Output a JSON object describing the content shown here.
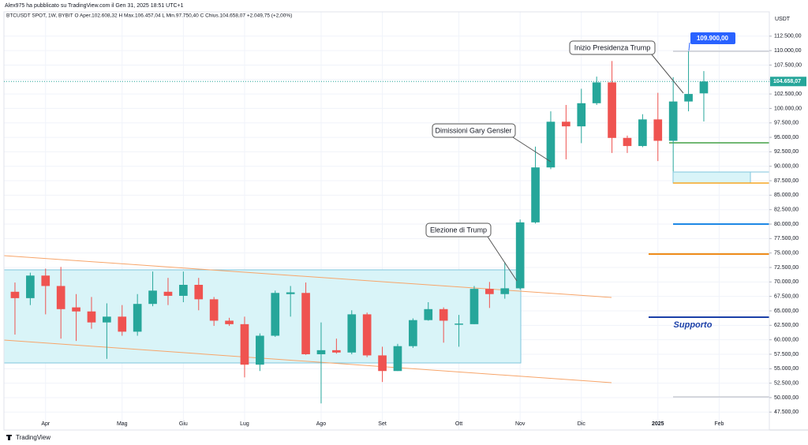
{
  "chart_data": {
    "type": "candlestick",
    "author_line": "Alex975 ha pubblicato su TradingView.com il Gen 31, 2025 18:51 UTC+1",
    "title": "BTCUSDT SPOT, 1W, BYBIT  O Aper.102.608,32  H Max.106.457,04  L Min.97.750,40  C Chius.104.658,07 +2.049,75 (+2,00%)",
    "currency": "USDT",
    "last_price": 104658.07,
    "last_price_label": "104.658,07",
    "up_color": "#26a69a",
    "down_color": "#ef5350",
    "annotations": [
      "Inizio Presidenza Trump",
      "Dimissioni Gary Gensler",
      "Elezione di Trump",
      "109.900,00",
      "Supporto"
    ],
    "brand": "TradingView",
    "open": [
      68300,
      67200,
      71100,
      69300,
      65600,
      64900,
      63000,
      64000,
      61400,
      66200,
      68300,
      67600,
      69500,
      67000,
      63300,
      62700,
      55700,
      60700,
      67900,
      68100,
      57500,
      58200,
      57800,
      64400,
      57300,
      54600,
      58900,
      63400,
      65300,
      62600,
      62700,
      68800,
      67900,
      68900,
      80300,
      89800,
      97700,
      96900,
      100900,
      104500,
      94900,
      93500,
      98100,
      94400,
      101200,
      102608
    ],
    "high": [
      69900,
      71600,
      72300,
      72600,
      67900,
      67400,
      66300,
      66000,
      67900,
      71800,
      70700,
      71800,
      70700,
      67400,
      63800,
      64000,
      61100,
      68500,
      69300,
      69900,
      63000,
      60200,
      65100,
      64700,
      58800,
      59300,
      63700,
      66500,
      65600,
      64300,
      69300,
      70000,
      73400,
      80800,
      93400,
      99500,
      100600,
      103400,
      105500,
      108200,
      95300,
      99000,
      102700,
      105400,
      109900,
      106457
    ],
    "low": [
      60900,
      66000,
      64400,
      60200,
      59800,
      61900,
      56700,
      60700,
      60700,
      65800,
      66000,
      66500,
      65100,
      62400,
      62400,
      53500,
      54600,
      60500,
      64000,
      57400,
      49000,
      57600,
      57500,
      57000,
      52700,
      54600,
      58600,
      63300,
      59500,
      58800,
      62700,
      65500,
      67100,
      68700,
      80100,
      89500,
      91200,
      94000,
      100600,
      92300,
      92300,
      93300,
      90900,
      89100,
      99500,
      97750
    ],
    "close": [
      67200,
      71100,
      69300,
      65300,
      64900,
      63000,
      64000,
      61400,
      66200,
      68500,
      67600,
      69500,
      67000,
      63300,
      62700,
      55700,
      60700,
      68100,
      68200,
      57500,
      58200,
      57800,
      64400,
      57300,
      54600,
      58900,
      63400,
      65300,
      63300,
      62800,
      68800,
      67900,
      68900,
      80300,
      89800,
      97700,
      96900,
      100900,
      104500,
      94900,
      93500,
      98100,
      94400,
      101200,
      102500,
      104658
    ],
    "xlim": [
      -0.72,
      49.28
    ],
    "xticks": [
      {
        "value": 2,
        "label": "Apr"
      },
      {
        "value": 7,
        "label": "Mag"
      },
      {
        "value": 11,
        "label": "Giu"
      },
      {
        "value": 15,
        "label": "Lug"
      },
      {
        "value": 20,
        "label": "Ago"
      },
      {
        "value": 24,
        "label": "Set"
      },
      {
        "value": 29,
        "label": "Ott"
      },
      {
        "value": 33,
        "label": "Nov"
      },
      {
        "value": 37,
        "label": "Dic"
      },
      {
        "value": 42,
        "label": "2025"
      },
      {
        "value": 46,
        "label": "Feb"
      }
    ],
    "ylim": [
      44400,
      116700
    ],
    "yticks": [
      {
        "value": 112500,
        "label": "112.500,00"
      },
      {
        "value": 110000,
        "label": "110.000,00"
      },
      {
        "value": 107500,
        "label": "107.500,00"
      },
      {
        "value": 105000,
        "label": "105.000,00"
      },
      {
        "value": 102500,
        "label": "102.500,00"
      },
      {
        "value": 100000,
        "label": "100.000,00"
      },
      {
        "value": 97500,
        "label": "97.500,00"
      },
      {
        "value": 95000,
        "label": "95.000,00"
      },
      {
        "value": 92500,
        "label": "92.500,00"
      },
      {
        "value": 90000,
        "label": "90.000,00"
      },
      {
        "value": 87500,
        "label": "87.500,00"
      },
      {
        "value": 85000,
        "label": "85.000,00"
      },
      {
        "value": 82500,
        "label": "82.500,00"
      },
      {
        "value": 80000,
        "label": "80.000,00"
      },
      {
        "value": 77500,
        "label": "77.500,00"
      },
      {
        "value": 75000,
        "label": "75.000,00"
      },
      {
        "value": 72500,
        "label": "72.500,00"
      },
      {
        "value": 70000,
        "label": "70.000,00"
      },
      {
        "value": 67500,
        "label": "67.500,00"
      },
      {
        "value": 65000,
        "label": "65.000,00"
      },
      {
        "value": 62500,
        "label": "62.500,00"
      },
      {
        "value": 60000,
        "label": "60.000,00"
      },
      {
        "value": 57500,
        "label": "57.500,00"
      },
      {
        "value": 55000,
        "label": "55.000,00"
      },
      {
        "value": 52500,
        "label": "52.500,00"
      },
      {
        "value": 50000,
        "label": "50.000,00"
      },
      {
        "value": 47500,
        "label": "47.500,00"
      }
    ],
    "grid": true
  }
}
